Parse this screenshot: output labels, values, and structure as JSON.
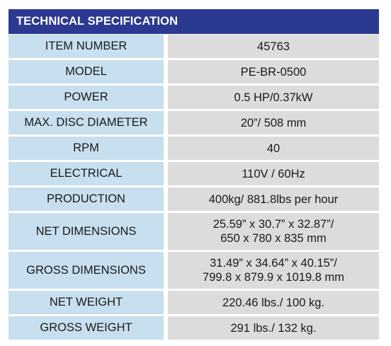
{
  "header": {
    "title": "TECHNICAL SPECIFICATION"
  },
  "colors": {
    "header_bg": "#2b3990",
    "label_bg": "#c7dfee",
    "value_bg": "#dcdcdc"
  },
  "rows": [
    {
      "label": "ITEM NUMBER",
      "value": "45763"
    },
    {
      "label": "MODEL",
      "value": "PE-BR-0500"
    },
    {
      "label": "POWER",
      "value": "0.5 HP/0.37kW"
    },
    {
      "label": "MAX. DISC DIAMETER",
      "value": "20”/ 508 mm"
    },
    {
      "label": "RPM",
      "value": "40"
    },
    {
      "label": "ELECTRICAL",
      "value": "110V / 60Hz"
    },
    {
      "label": "PRODUCTION",
      "value": "400kg/ 881.8lbs per hour"
    },
    {
      "label": "NET DIMENSIONS",
      "value": "25.59” x 30.7” x 32.87”/\n650 x 780 x 835 mm"
    },
    {
      "label": "GROSS DIMENSIONS",
      "value": "31.49” x 34.64” x 40.15”/\n799.8 x 879.9 x 1019.8 mm"
    },
    {
      "label": "NET WEIGHT",
      "value": "220.46 lbs./ 100 kg."
    },
    {
      "label": "GROSS WEIGHT",
      "value": "291 lbs./ 132 kg."
    }
  ]
}
